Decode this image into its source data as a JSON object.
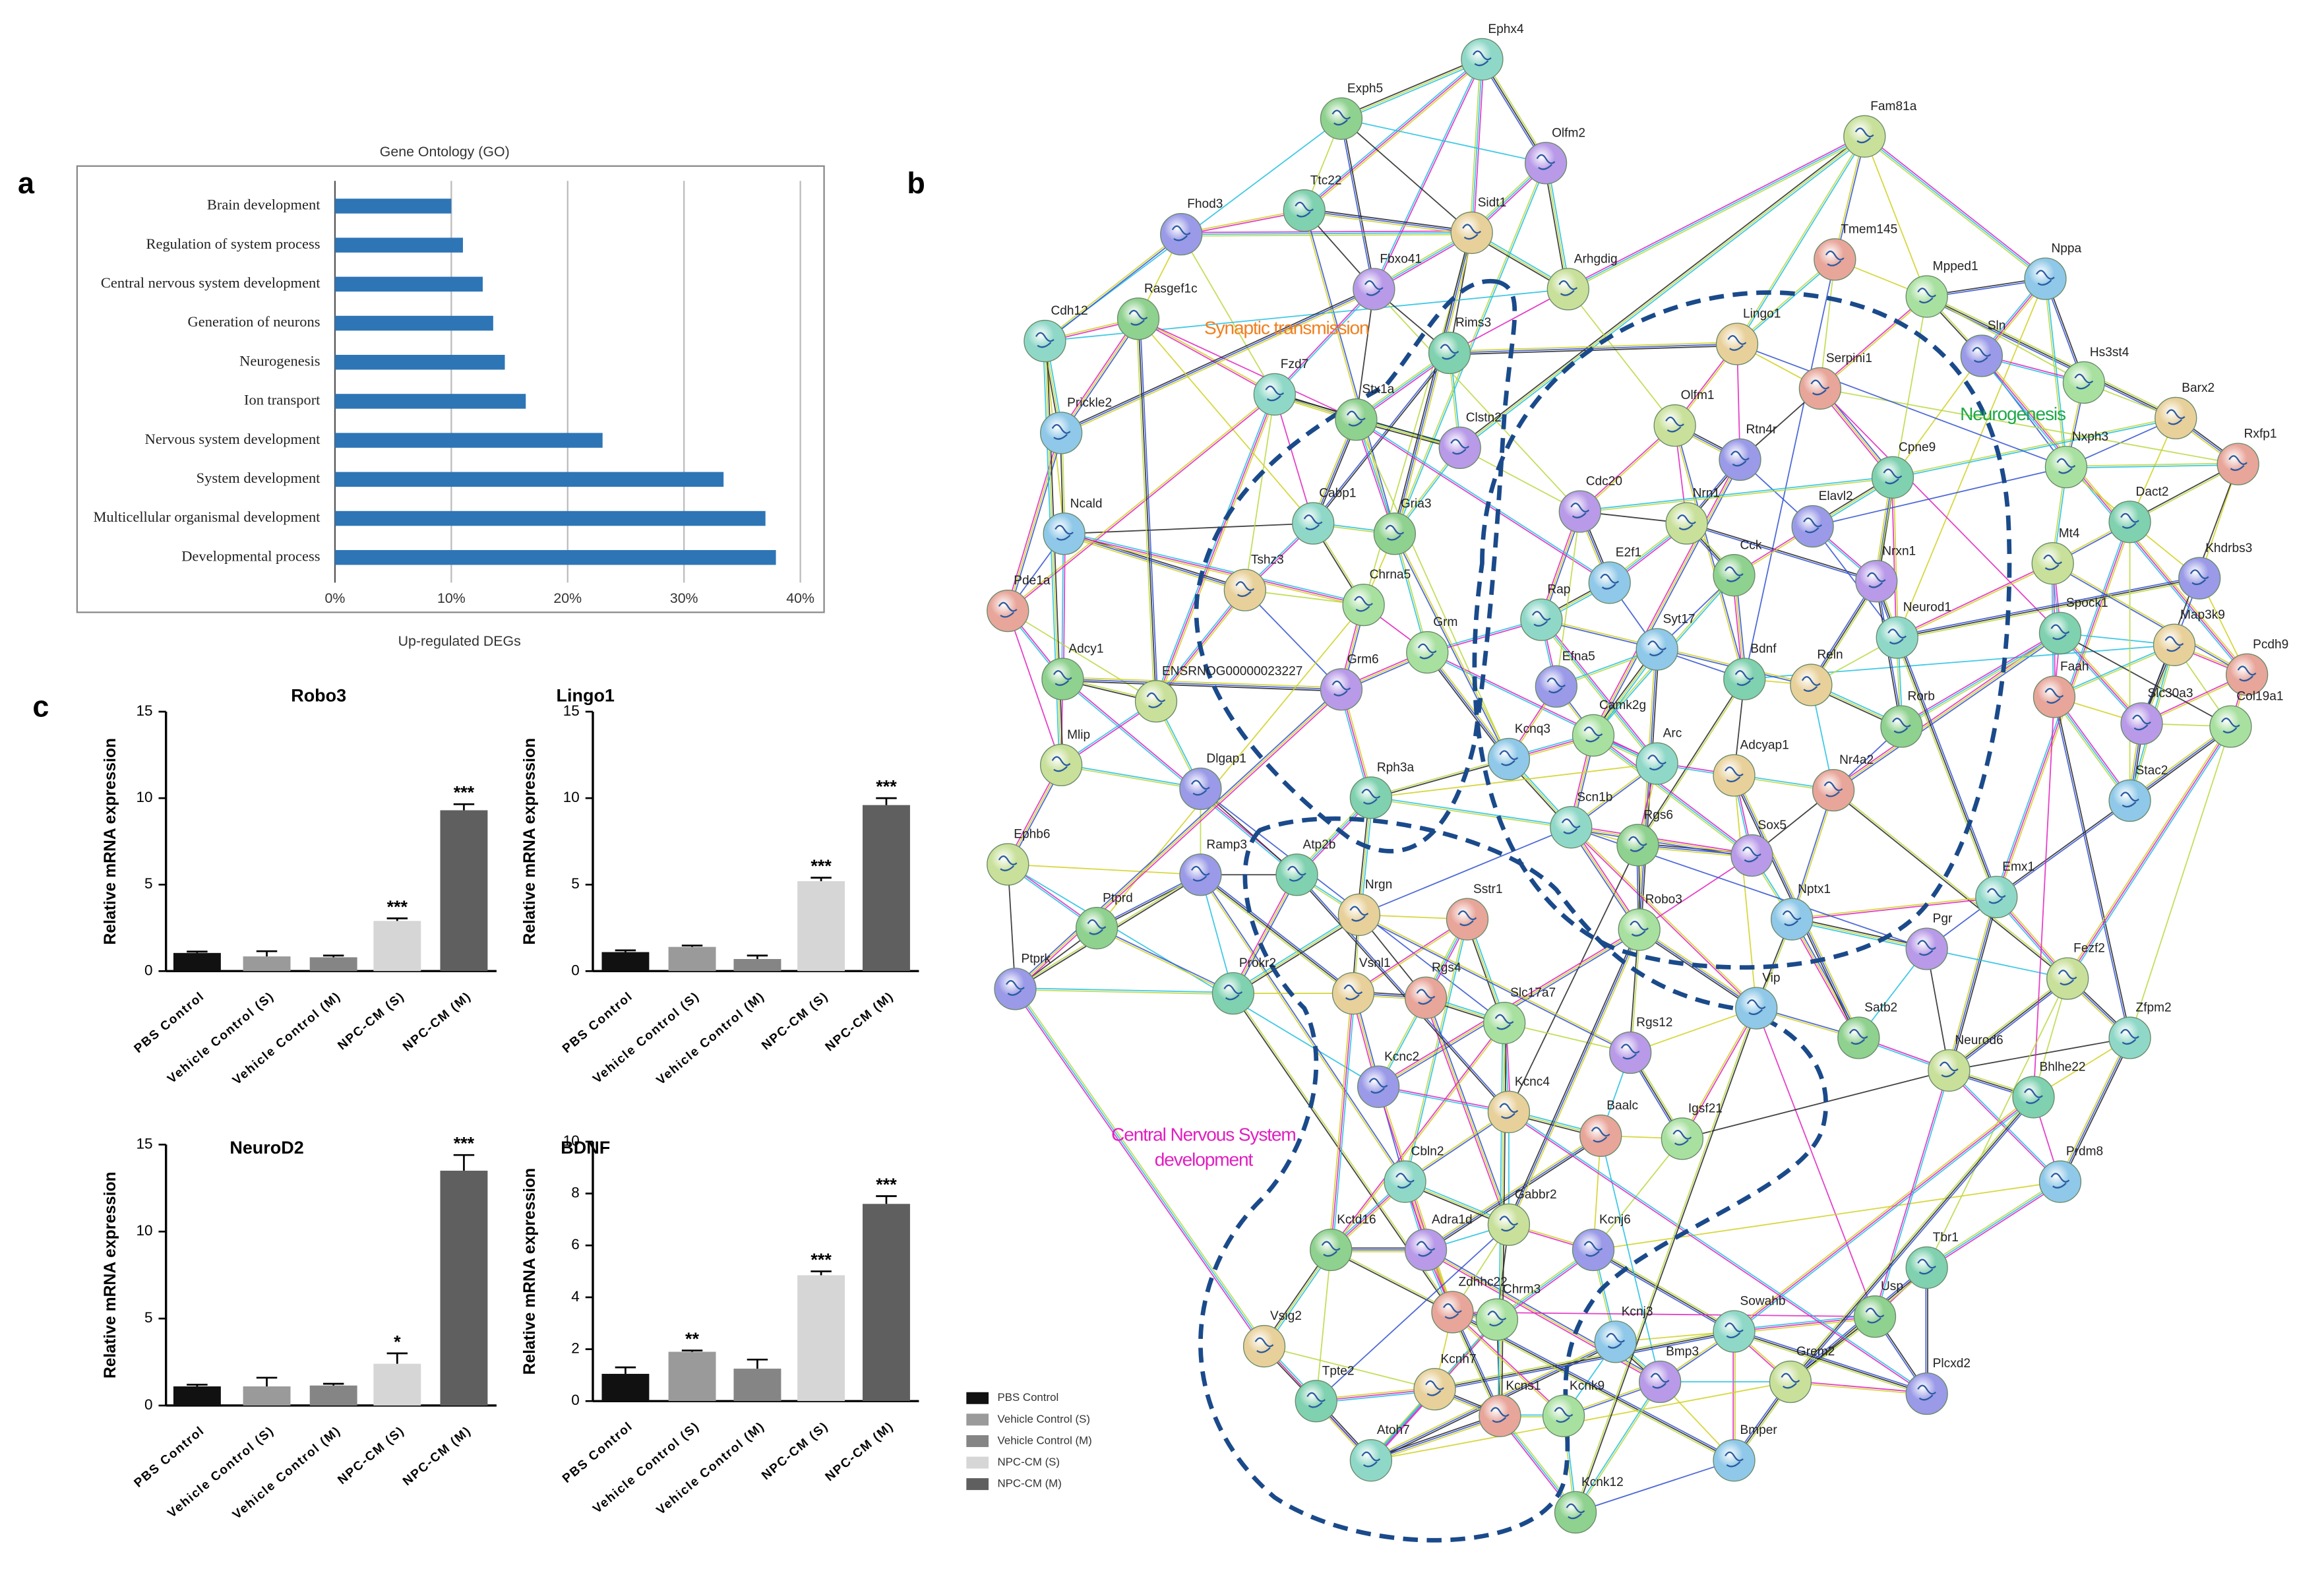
{
  "panel_labels": [
    "a",
    "b",
    "c"
  ],
  "chart_data": [
    {
      "type": "barh",
      "title": "Gene Ontology (GO)",
      "xlabel": "Up-regulated DEGs",
      "categories": [
        "Brain development",
        "Regulation of system process",
        "Central nervous system development",
        "Generation of neurons",
        "Neurogenesis",
        "Ion transport",
        "Nervous system development",
        "System development",
        "Multicellular organismal development",
        "Developmental process"
      ],
      "values": [
        10,
        11,
        12.7,
        13.6,
        14.6,
        16.4,
        23,
        33.4,
        37,
        37.9
      ],
      "color": "#2e75b6",
      "xlim": [
        0,
        42
      ],
      "xticks": [
        {
          "value": 0,
          "label": "0%"
        },
        {
          "value": 10,
          "label": "10%"
        },
        {
          "value": 20,
          "label": "20%"
        },
        {
          "value": 30,
          "label": "30%"
        },
        {
          "value": 40,
          "label": "40%"
        }
      ],
      "grid": true
    },
    {
      "type": "bar",
      "title": "Robo3",
      "ylabel": "Relative mRNA expression",
      "categories": [
        "PBS Control",
        "Vehicle Control (S)",
        "Vehicle Control (M)",
        "NPC-CM (S)",
        "NPC-CM (M)"
      ],
      "values": [
        1.05,
        0.85,
        0.8,
        2.9,
        9.3
      ],
      "errors": [
        0.08,
        0.3,
        0.1,
        0.15,
        0.35
      ],
      "annotations": [
        null,
        null,
        null,
        "***",
        "***"
      ],
      "colors": [
        "#111111",
        "#9a9a9a",
        "#858585",
        "#d6d6d6",
        "#5f5f5f"
      ],
      "ylim": [
        0,
        15
      ],
      "yticks": [
        0,
        5,
        10,
        15
      ]
    },
    {
      "type": "bar",
      "title": "Lingo1",
      "ylabel": "Relative mRNA expression",
      "categories": [
        "PBS Control",
        "Vehicle Control (S)",
        "Vehicle Control (M)",
        "NPC-CM (S)",
        "NPC-CM (M)"
      ],
      "values": [
        1.1,
        1.4,
        0.7,
        5.2,
        9.6
      ],
      "errors": [
        0.1,
        0.08,
        0.2,
        0.2,
        0.4
      ],
      "annotations": [
        null,
        null,
        null,
        "***",
        "***"
      ],
      "colors": [
        "#111111",
        "#9a9a9a",
        "#858585",
        "#d6d6d6",
        "#5f5f5f"
      ],
      "ylim": [
        0,
        15
      ],
      "yticks": [
        0,
        5,
        10,
        15
      ]
    },
    {
      "type": "bar",
      "title": "NeuroD2",
      "ylabel": "Relative mRNA expression",
      "categories": [
        "PBS Control",
        "Vehicle Control (S)",
        "Vehicle Control (M)",
        "NPC-CM (S)",
        "NPC-CM (M)"
      ],
      "values": [
        1.1,
        1.1,
        1.15,
        2.4,
        13.5
      ],
      "errors": [
        0.1,
        0.5,
        0.1,
        0.6,
        0.9
      ],
      "annotations": [
        null,
        null,
        null,
        "*",
        "***"
      ],
      "colors": [
        "#111111",
        "#9a9a9a",
        "#858585",
        "#d6d6d6",
        "#5f5f5f"
      ],
      "ylim": [
        0,
        15
      ],
      "yticks": [
        0,
        5,
        10,
        15
      ]
    },
    {
      "type": "bar",
      "title": "BDNF",
      "ylabel": "Relative mRNA expression",
      "categories": [
        "PBS Control",
        "Vehicle Control (S)",
        "Vehicle Control (M)",
        "NPC-CM (S)",
        "NPC-CM (M)"
      ],
      "values": [
        1.05,
        1.9,
        1.25,
        4.85,
        7.6
      ],
      "errors": [
        0.25,
        0.05,
        0.35,
        0.15,
        0.3
      ],
      "annotations": [
        null,
        "**",
        null,
        "***",
        "***"
      ],
      "colors": [
        "#111111",
        "#9a9a9a",
        "#858585",
        "#d6d6d6",
        "#5f5f5f"
      ],
      "ylim": [
        0,
        10
      ],
      "yticks": [
        0,
        2,
        4,
        6,
        8,
        10
      ]
    }
  ],
  "network": {
    "nodes": [
      "Ephx4",
      "Exph5",
      "Olfm2",
      "Fam81a",
      "Fhod3",
      "Ttc22",
      "Sidt1",
      "Tmem145",
      "Mpped1",
      "Nppa",
      "Cdh12",
      "Rasgef1c",
      "Fbxo41",
      "Arhgdig",
      "Sln",
      "Rims3",
      "Lingo1",
      "Serpini1",
      "Hs3st4",
      "Prickle2",
      "Fzd7",
      "Stx1a",
      "Clstn2",
      "Olfm1",
      "Rtn4r",
      "Cpne9",
      "Barx2",
      "Rxfp1",
      "Nxph3",
      "Ncald",
      "Cabp1",
      "Gria3",
      "Cdc20",
      "Nrn1",
      "Elavl2",
      "Dact2",
      "Tshz3",
      "Pde1a",
      "Chrna5",
      "E2f1",
      "Rap",
      "Cck",
      "Nrxn1",
      "Mt4",
      "Khdrbs3",
      "Spock1",
      "Map3k9",
      "Pcdh9",
      "Grm",
      "Syt17",
      "Neurod1",
      "Adcy1",
      "Grm6",
      "ENSRNOG00000023227",
      "Efna5",
      "Bdnf",
      "Reln",
      "Faah",
      "Camk2g",
      "Kcnq3",
      "Arc",
      "Rorb",
      "Slc30a3",
      "Mlip",
      "Dlgap1",
      "Rph3a",
      "Adcyap1",
      "Nr4a2",
      "Col19a1",
      "Stac2",
      "Scn1b",
      "Rgs6",
      "Sox5",
      "Ephb6",
      "Ramp3",
      "Atp2b",
      "Nrgn",
      "Sstr1",
      "Robo3",
      "Nptx1",
      "Emx1",
      "Ptprd",
      "Pgr",
      "Fezf2",
      "Ptprk",
      "Prokr2",
      "Vsnl1",
      "Rgs4",
      "Slc17a7",
      "Vip",
      "Zfpm2",
      "Satb2",
      "Rgs12",
      "Neurod6",
      "Kcnc2",
      "Bhlhe22",
      "Kcnc4",
      "Baalc",
      "Igsf21",
      "Prdm8",
      "Cbln2",
      "Kctd16",
      "Adra1d",
      "Gabbr2",
      "Kcnj6",
      "Tbr1",
      "Vsig2",
      "Zdhhc22",
      "Chrm3",
      "Kcnj3",
      "Sowahb",
      "Usp",
      "Bmp3",
      "Grem2",
      "Plcxd2",
      "Tpte2",
      "Kcnh7",
      "Kcns1",
      "Kcnk9",
      "Bmper",
      "Atoh7",
      "Kcnk12"
    ],
    "clusters": [
      {
        "lines": [
          "Synaptic transmission"
        ],
        "color": "#f07f1e"
      },
      {
        "lines": [
          "Neurogenesis"
        ],
        "color": "#1fa84a"
      },
      {
        "lines": [
          "Central Nervous System",
          "development"
        ],
        "color": "#e020c0"
      }
    ]
  }
}
